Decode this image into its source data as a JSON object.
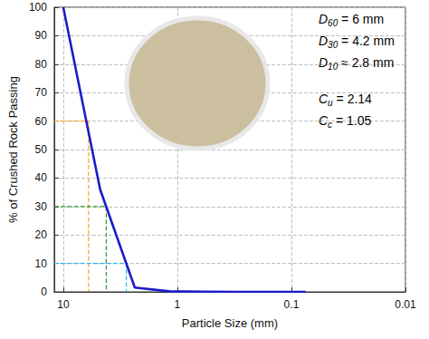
{
  "chart_data": {
    "type": "line",
    "x_label": "Particle Size (mm)",
    "y_label": "% of Crushed Rock Passing",
    "log": "x",
    "grid": true,
    "color": "#1c1cc8",
    "x": [
      10,
      4.75,
      2.36,
      1.18,
      0.6,
      0.3,
      0.15,
      0.075
    ],
    "values": [
      100,
      36,
      1.5,
      0.2,
      0.1,
      0,
      0,
      0
    ],
    "xlim": [
      12,
      0.01
    ],
    "xticks": [
      10,
      1,
      0.1,
      0.01
    ],
    "ylim": [
      0,
      100
    ],
    "yticks": [
      0,
      10,
      20,
      30,
      40,
      50,
      60,
      70,
      80,
      90,
      100
    ],
    "guides": [
      {
        "x": 6,
        "y": 60,
        "color": "#f5a623"
      },
      {
        "x": 4.2,
        "y": 30,
        "color": "#2e9b2e"
      },
      {
        "x": 2.8,
        "y": 10,
        "color": "#29b6f6"
      }
    ],
    "annotations": [
      {
        "symbol": "D",
        "subscript": "60",
        "text": " = 6 mm"
      },
      {
        "symbol": "D",
        "subscript": "30",
        "text": " = 4.2 mm"
      },
      {
        "symbol": "D",
        "subscript": "10",
        "text": " ≈ 2.8 mm"
      },
      {
        "symbol": "C",
        "subscript": "u",
        "text": " = 2.14"
      },
      {
        "symbol": "C",
        "subscript": "c",
        "text": " = 1.05"
      }
    ]
  }
}
